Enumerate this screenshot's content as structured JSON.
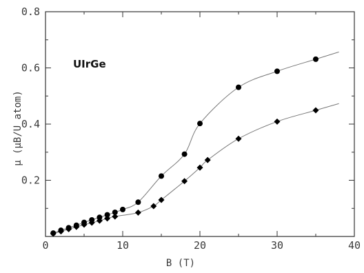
{
  "chart_data": {
    "type": "scatter",
    "title": "",
    "annotation": "UIrGe",
    "xlabel": "B (T)",
    "ylabel": "μ (μB/U atom)",
    "xlim": [
      0,
      40
    ],
    "ylim": [
      0,
      0.8
    ],
    "x_ticks": [
      0,
      10,
      20,
      30,
      40
    ],
    "x_tick_labels": [
      "0",
      "10",
      "20",
      "30",
      "40"
    ],
    "y_ticks": [
      0.2,
      0.4,
      0.6,
      0.8
    ],
    "y_tick_labels": [
      "0.2",
      "0.4",
      "0.6",
      "0.8"
    ],
    "grid": false,
    "legend": "none",
    "series": [
      {
        "marker": "circle",
        "color": "#000000",
        "x": [
          1,
          2,
          3,
          4,
          5,
          6,
          7,
          8,
          9,
          10,
          12,
          15,
          18,
          20,
          25,
          30,
          35
        ],
        "y": [
          0.012,
          0.022,
          0.031,
          0.04,
          0.05,
          0.059,
          0.068,
          0.077,
          0.086,
          0.096,
          0.122,
          0.215,
          0.293,
          0.402,
          0.531,
          0.588,
          0.631
        ]
      },
      {
        "marker": "diamond",
        "color": "#000000",
        "x": [
          1,
          2,
          3,
          4,
          5,
          6,
          7,
          8,
          9,
          12,
          14,
          15,
          18,
          20,
          21,
          25,
          30,
          35
        ],
        "y": [
          0.01,
          0.018,
          0.026,
          0.034,
          0.042,
          0.049,
          0.056,
          0.064,
          0.071,
          0.085,
          0.108,
          0.13,
          0.197,
          0.245,
          0.272,
          0.348,
          0.409,
          0.449
        ]
      }
    ]
  }
}
